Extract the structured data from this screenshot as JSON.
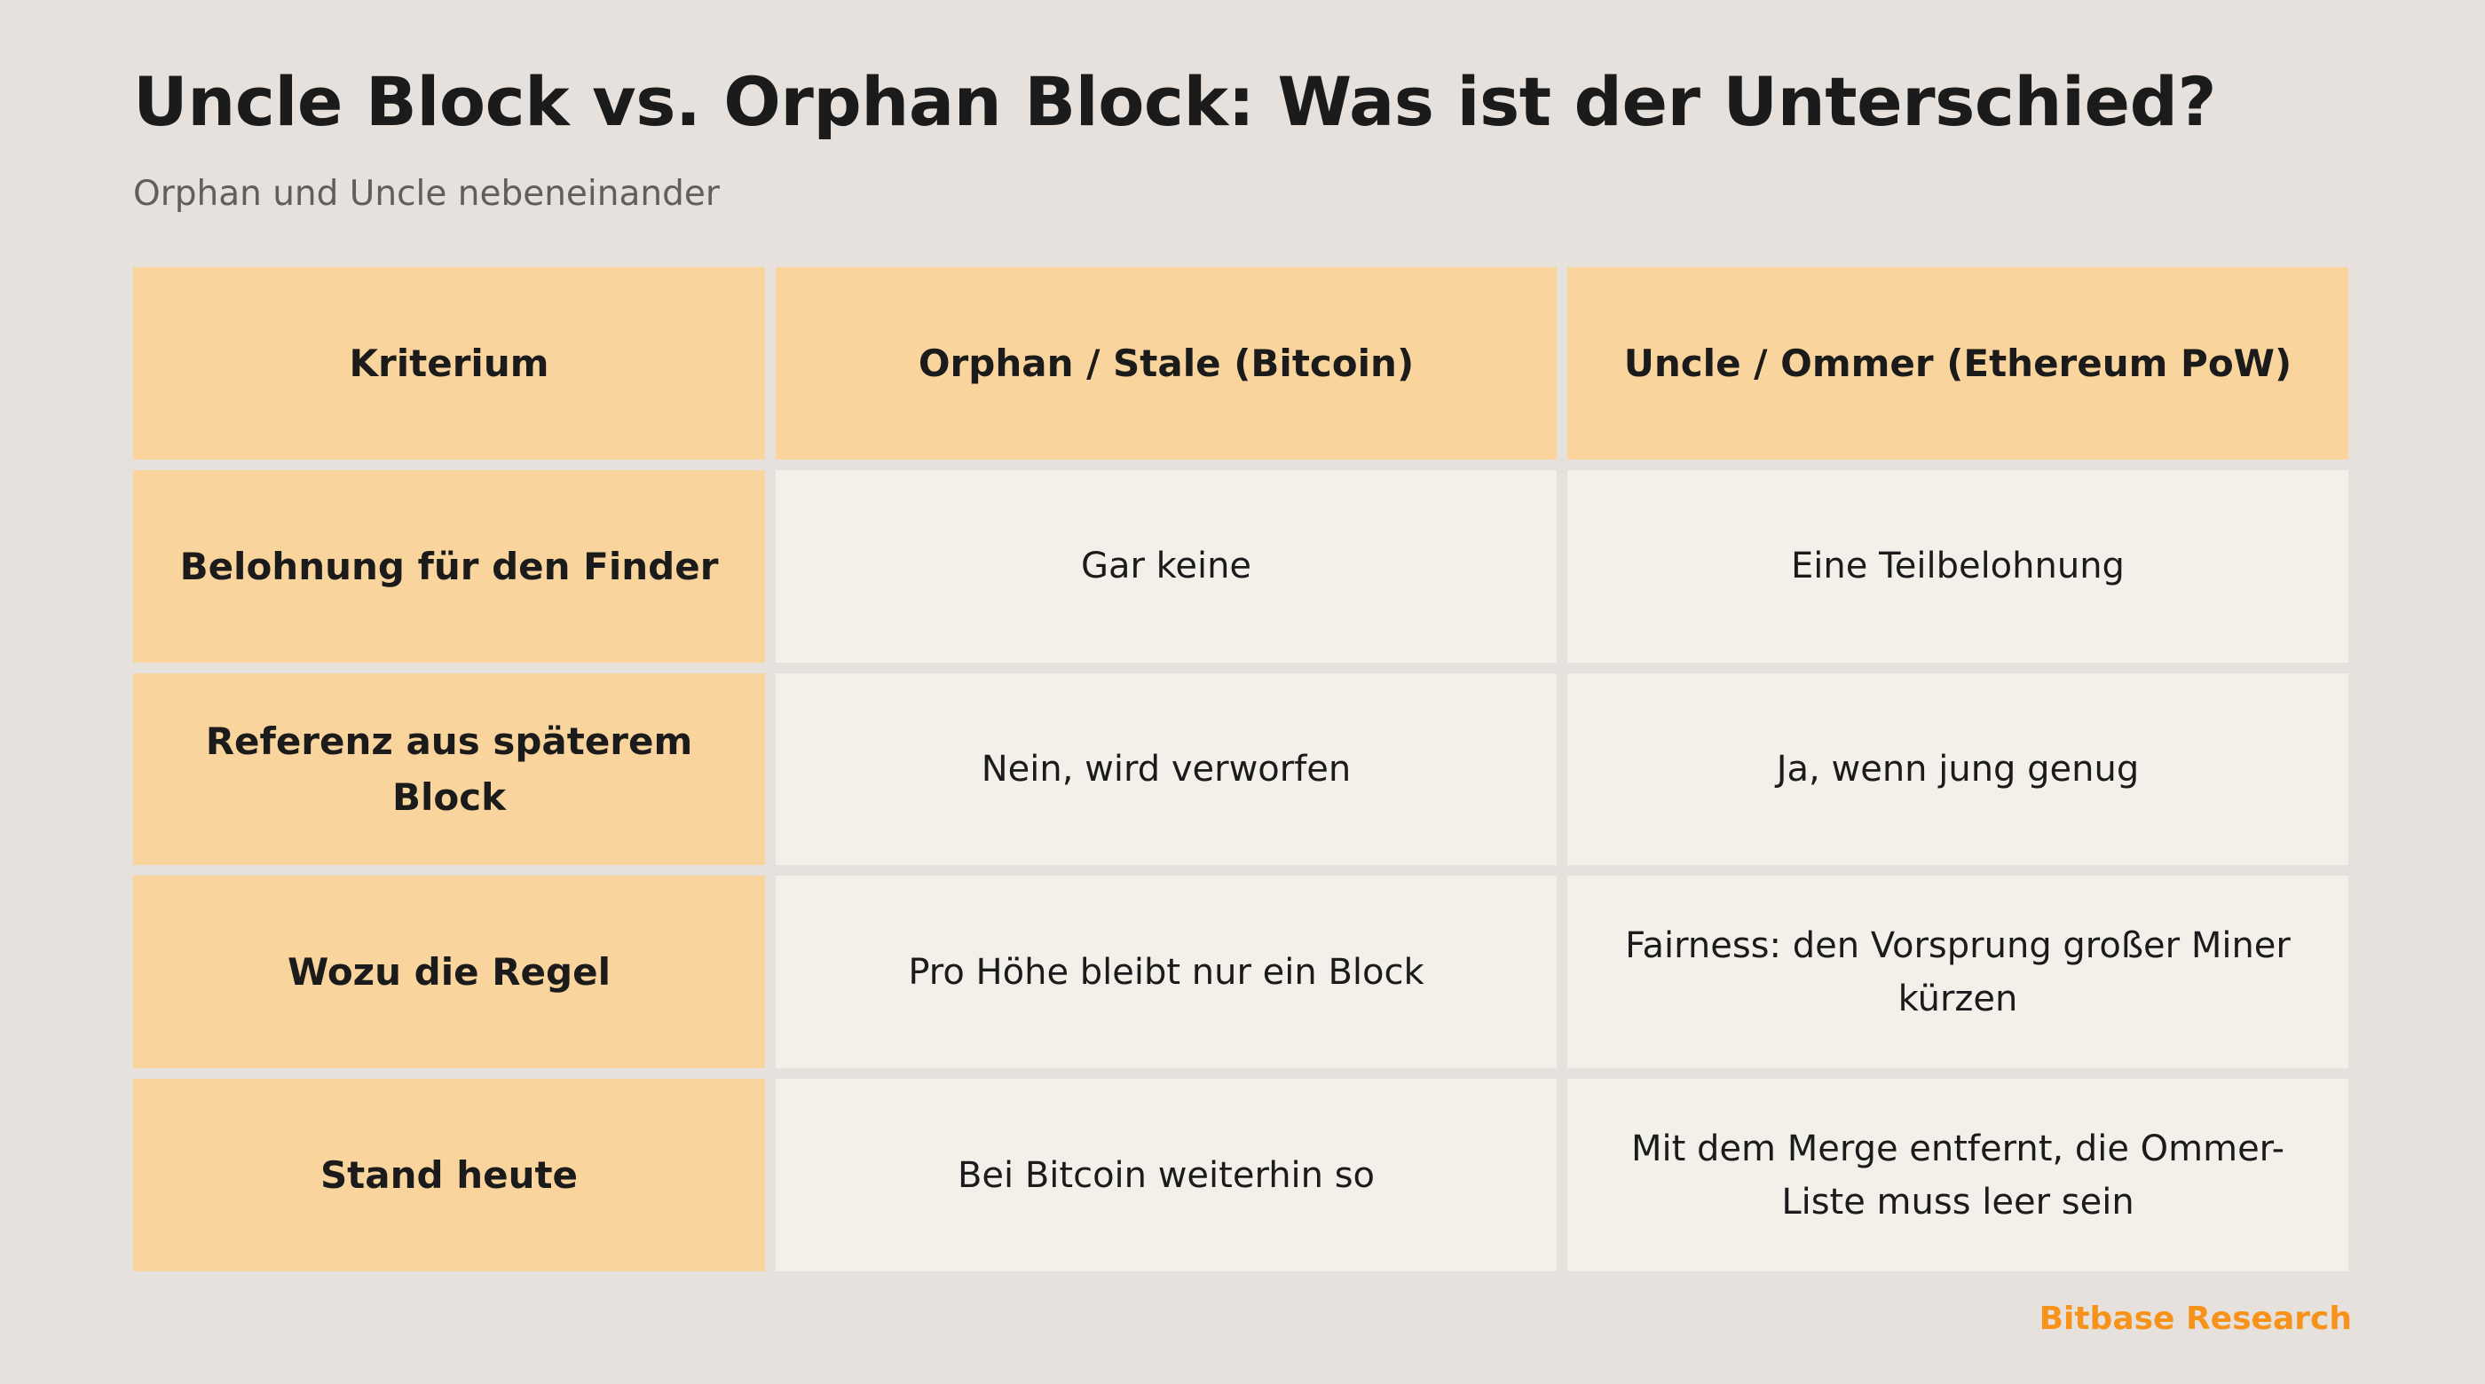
{
  "header": {
    "title": "Uncle Block vs. Orphan Block: Was ist der Unterschied?",
    "subtitle": "Orphan und Uncle nebeneinander"
  },
  "table": {
    "columns": [
      "Kriterium",
      "Orphan / Stale (Bitcoin)",
      "Uncle / Ommer (Ethereum PoW)"
    ],
    "rows": [
      {
        "criterion": "Belohnung für den Finder",
        "orphan": "Gar keine",
        "uncle": "Eine Teilbelohnung"
      },
      {
        "criterion": "Referenz aus späterem Block",
        "orphan": "Nein, wird verworfen",
        "uncle": "Ja, wenn jung genug"
      },
      {
        "criterion": "Wozu die Regel",
        "orphan": "Pro Höhe bleibt nur ein Block",
        "uncle": "Fairness: den Vorsprung großer Miner kürzen"
      },
      {
        "criterion": "Stand heute",
        "orphan": "Bei Bitcoin weiterhin so",
        "uncle": "Mit dem Merge entfernt, die Ommer-Liste muss leer sein"
      }
    ]
  },
  "footer": {
    "brand": "Bitbase Research"
  },
  "colors": {
    "background": "#e6e1dc",
    "header_fill": "#f9d49d",
    "cell_fill": "#f3f0ea",
    "brand": "#f7931a"
  }
}
